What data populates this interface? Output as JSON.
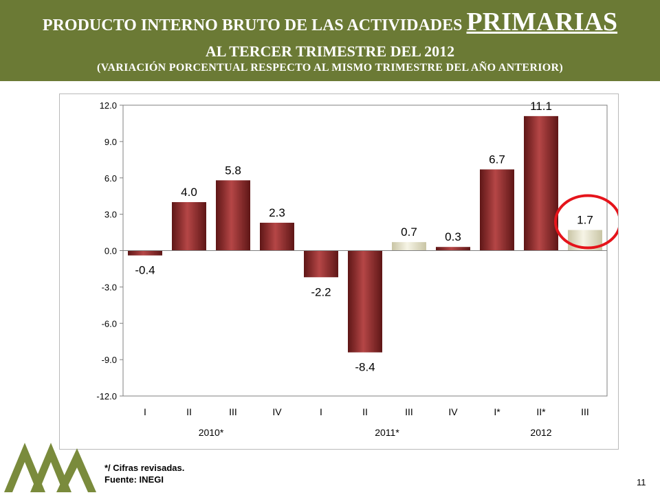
{
  "header": {
    "line1_prefix": "PRODUCTO INTERNO BRUTO DE LAS ACTIVIDADES",
    "line1_emphasis": "PRIMARIAS",
    "line2": "AL TERCER TRIMESTRE DEL 2012",
    "line3": "(VARIACIÓN PORCENTUAL RESPECTO AL MISMO TRIMESTRE DEL AÑO ANTERIOR)"
  },
  "chart_data": {
    "type": "bar",
    "title": "",
    "xlabel": "",
    "ylabel": "",
    "ylim": [
      -12.0,
      12.0
    ],
    "yticks": [
      "12.0",
      "9.0",
      "6.0",
      "3.0",
      "0.0",
      "-3.0",
      "-6.0",
      "-9.0",
      "-12.0"
    ],
    "categories": [
      "I",
      "II",
      "III",
      "IV",
      "I",
      "II",
      "III",
      "IV",
      "I*",
      "II*",
      "III"
    ],
    "values": [
      -0.4,
      4.0,
      5.8,
      2.3,
      -2.2,
      -8.4,
      0.7,
      0.3,
      6.7,
      11.1,
      1.7
    ],
    "value_labels": [
      "-0.4",
      "4.0",
      "5.8",
      "2.3",
      "-2.2",
      "-8.4",
      "0.7",
      "0.3",
      "6.7",
      "11.1",
      "1.7"
    ],
    "groups": [
      {
        "label": "2010*",
        "count": 4
      },
      {
        "label": "2011*",
        "count": 4
      },
      {
        "label": "2012",
        "count": 3
      }
    ],
    "highlight_index": 10,
    "colors": {
      "main": "#8e2a2a",
      "light": "#e6e3cf",
      "highlight_ring": "#e5141b"
    },
    "grid": false,
    "legend": "none"
  },
  "footnote": {
    "line1": "*/ Cifras revisadas.",
    "line2": "Fuente: INEGI"
  },
  "page_number": "11"
}
